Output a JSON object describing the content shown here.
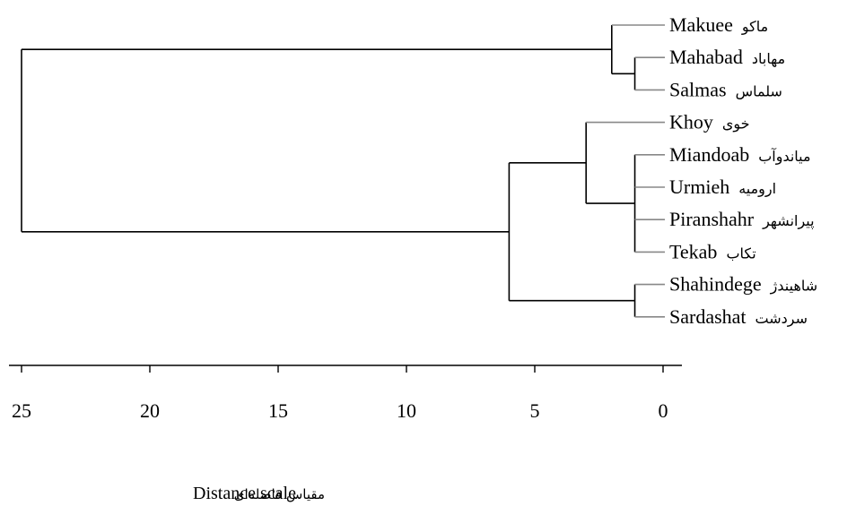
{
  "chart_data": {
    "type": "dendrogram",
    "axis": {
      "label_en": "Distance scale",
      "label_fa": "مقیاس فاصله‌ای",
      "ticks": [
        25,
        20,
        15,
        10,
        5,
        0
      ],
      "range": [
        0,
        25
      ],
      "direction": "reversed"
    },
    "leaves": [
      {
        "name": "Makuee",
        "name_fa": "ماکو"
      },
      {
        "name": "Mahabad",
        "name_fa": "مهاباد"
      },
      {
        "name": "Salmas",
        "name_fa": "سلماس"
      },
      {
        "name": "Khoy",
        "name_fa": "خوی"
      },
      {
        "name": "Miandoab",
        "name_fa": "میاندوآب"
      },
      {
        "name": "Urmieh",
        "name_fa": "ارومیه"
      },
      {
        "name": "Piranshahr",
        "name_fa": "پیرانشهر"
      },
      {
        "name": "Tekab",
        "name_fa": "تکاب"
      },
      {
        "name": "Shahindege",
        "name_fa": "شاهیندژ"
      },
      {
        "name": "Sardashat",
        "name_fa": "سردشت"
      }
    ],
    "merges": [
      {
        "id": "m1",
        "children": [
          "L1",
          "L2"
        ],
        "distance": 1.1
      },
      {
        "id": "m2",
        "children": [
          "L0",
          "m1"
        ],
        "distance": 2.0
      },
      {
        "id": "m3",
        "children": [
          "L4",
          "L5",
          "L6",
          "L7"
        ],
        "distance": 1.1
      },
      {
        "id": "m4",
        "children": [
          "L3",
          "m3"
        ],
        "distance": 3.0
      },
      {
        "id": "m5",
        "children": [
          "L8",
          "L9"
        ],
        "distance": 1.1
      },
      {
        "id": "m6",
        "children": [
          "m4",
          "m5"
        ],
        "distance": 6.0
      },
      {
        "id": "m7",
        "children": [
          "m2",
          "m6"
        ],
        "distance": 25.0
      }
    ]
  }
}
